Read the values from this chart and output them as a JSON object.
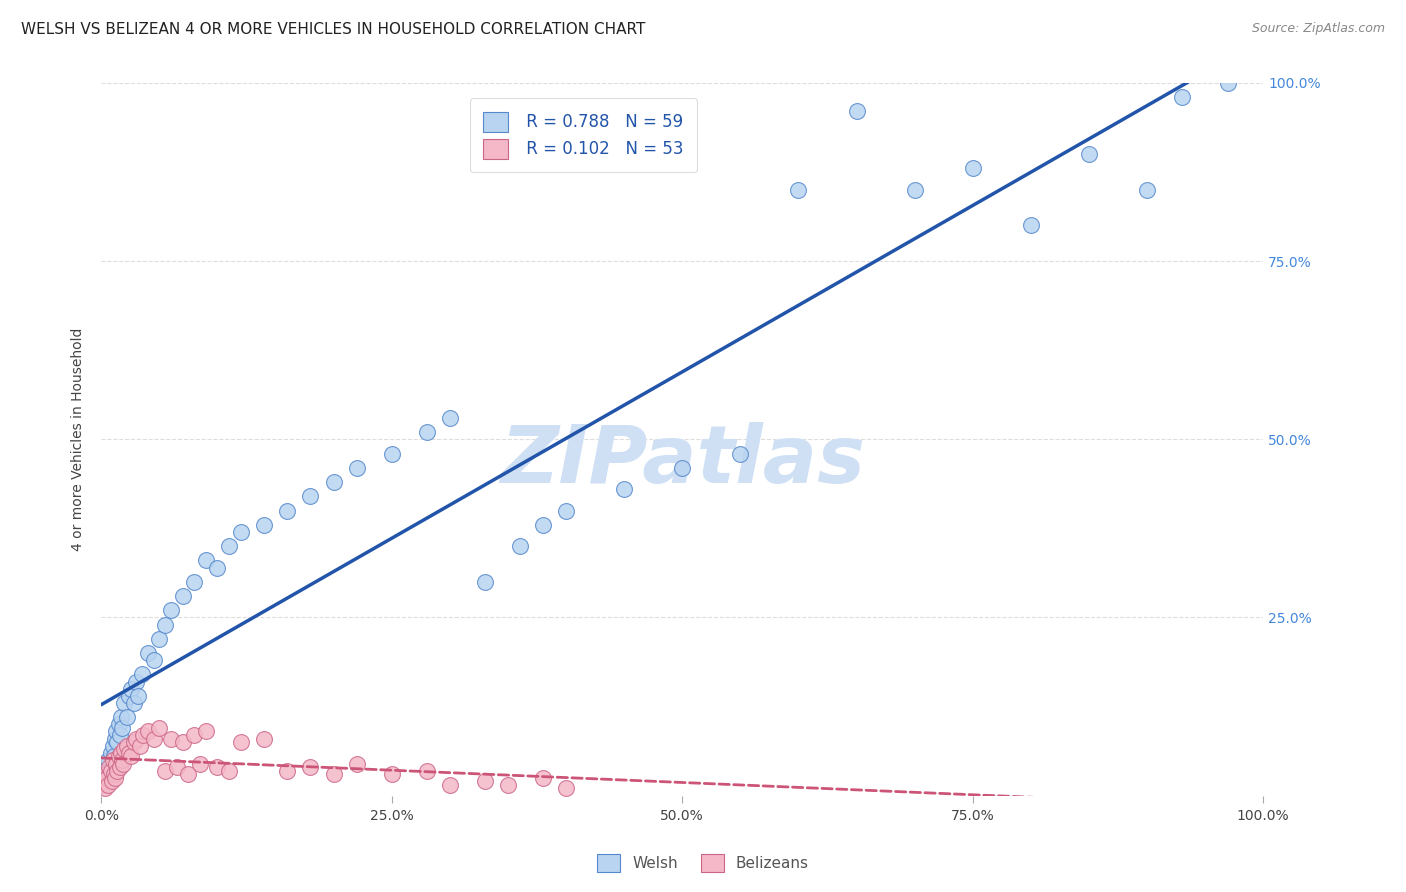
{
  "title": "WELSH VS BELIZEAN 4 OR MORE VEHICLES IN HOUSEHOLD CORRELATION CHART",
  "source": "Source: ZipAtlas.com",
  "ylabel": "4 or more Vehicles in Household",
  "welsh_R": 0.788,
  "welsh_N": 59,
  "belizean_R": 0.102,
  "belizean_N": 53,
  "welsh_color": "#b8d4f0",
  "welsh_edge_color": "#5588cc",
  "welsh_line_color": "#2255aa",
  "belizean_color": "#f4b8c8",
  "belizean_edge_color": "#cc6688",
  "belizean_line_color": "#cc5577",
  "watermark_text": "ZIPatlas",
  "watermark_color": "#cfe0f5",
  "title_fontsize": 11,
  "source_fontsize": 9,
  "legend_fontsize": 12,
  "ylabel_fontsize": 10,
  "background_color": "#ffffff",
  "grid_color": "#dddddd",
  "right_ytick_color": "#4488dd",
  "right_ytick_labels": [
    "25.0%",
    "50.0%",
    "75.0%",
    "100.0%"
  ],
  "right_ytick_vals": [
    25,
    50,
    75,
    100
  ],
  "xlim": [
    0,
    100
  ],
  "ylim": [
    0,
    100
  ],
  "welsh_x": [
    0.3,
    0.4,
    0.5,
    0.6,
    0.7,
    0.8,
    0.9,
    1.0,
    1.1,
    1.2,
    1.3,
    1.4,
    1.5,
    1.6,
    1.7,
    1.8,
    2.0,
    2.2,
    2.4,
    2.6,
    2.8,
    3.0,
    3.2,
    3.5,
    4.0,
    4.5,
    5.0,
    5.5,
    6.0,
    7.0,
    8.0,
    9.0,
    10.0,
    11.0,
    12.0,
    14.0,
    16.0,
    18.0,
    20.0,
    22.0,
    25.0,
    28.0,
    30.0,
    33.0,
    36.0,
    38.0,
    40.0,
    45.0,
    50.0,
    55.0,
    60.0,
    65.0,
    70.0,
    75.0,
    80.0,
    85.0,
    90.0,
    93.0,
    97.0
  ],
  "welsh_y": [
    3.0,
    4.0,
    2.0,
    5.0,
    3.5,
    6.0,
    4.5,
    7.0,
    5.5,
    8.0,
    9.0,
    7.5,
    10.0,
    8.5,
    11.0,
    9.5,
    13.0,
    11.0,
    14.0,
    15.0,
    13.0,
    16.0,
    14.0,
    17.0,
    20.0,
    19.0,
    22.0,
    24.0,
    26.0,
    28.0,
    30.0,
    33.0,
    32.0,
    35.0,
    37.0,
    38.0,
    40.0,
    42.0,
    44.0,
    46.0,
    48.0,
    51.0,
    53.0,
    30.0,
    35.0,
    38.0,
    40.0,
    43.0,
    46.0,
    48.0,
    85.0,
    96.0,
    85.0,
    88.0,
    80.0,
    90.0,
    85.0,
    98.0,
    100.0
  ],
  "belizean_x": [
    0.1,
    0.2,
    0.3,
    0.4,
    0.5,
    0.6,
    0.7,
    0.8,
    0.9,
    1.0,
    1.1,
    1.2,
    1.3,
    1.4,
    1.5,
    1.6,
    1.7,
    1.8,
    1.9,
    2.0,
    2.2,
    2.4,
    2.6,
    2.8,
    3.0,
    3.3,
    3.6,
    4.0,
    4.5,
    5.0,
    5.5,
    6.0,
    6.5,
    7.0,
    7.5,
    8.0,
    8.5,
    9.0,
    10.0,
    11.0,
    12.0,
    14.0,
    16.0,
    18.0,
    20.0,
    22.0,
    25.0,
    28.0,
    30.0,
    33.0,
    35.0,
    38.0,
    40.0
  ],
  "belizean_y": [
    1.5,
    2.0,
    1.0,
    3.0,
    2.5,
    1.5,
    4.0,
    3.5,
    2.0,
    5.0,
    3.0,
    2.5,
    4.5,
    3.5,
    5.5,
    4.0,
    6.0,
    5.0,
    4.5,
    6.5,
    7.0,
    6.0,
    5.5,
    7.5,
    8.0,
    7.0,
    8.5,
    9.0,
    8.0,
    9.5,
    3.5,
    8.0,
    4.0,
    7.5,
    3.0,
    8.5,
    4.5,
    9.0,
    4.0,
    3.5,
    7.5,
    8.0,
    3.5,
    4.0,
    3.0,
    4.5,
    3.0,
    3.5,
    1.5,
    2.0,
    1.5,
    2.5,
    1.0
  ]
}
